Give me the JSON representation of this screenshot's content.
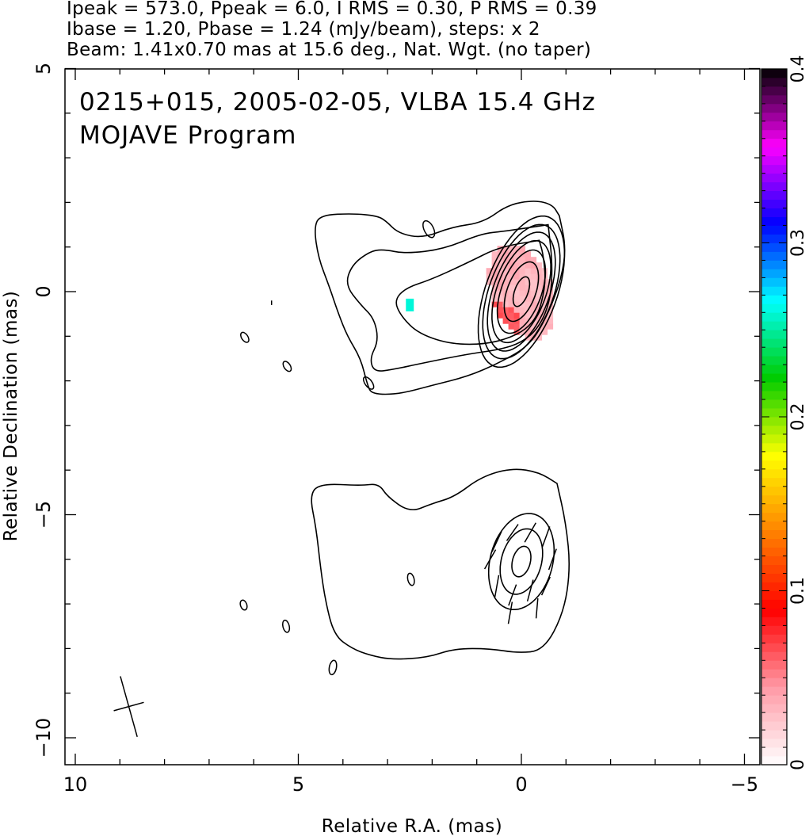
{
  "header": {
    "line1": "Ipeak = 573.0, Ppeak = 6.0, I RMS = 0.30, P RMS = 0.39",
    "line2": "Ibase = 1.20, Pbase = 1.24 (mJy/beam), steps: x 2",
    "line3": "Beam: 1.41x0.70 mas at 15.6 deg., Nat. Wgt. (no taper)"
  },
  "inset": {
    "line1": "0215+015, 2005-02-05, VLBA 15.4 GHz",
    "line2": "MOJAVE Program"
  },
  "chart_data": {
    "type": "contour",
    "xlabel": "Relative R.A. (mas)",
    "ylabel": "Relative Declination (mas)",
    "xlim": [
      10.2,
      -5.2
    ],
    "ylim": [
      -10.6,
      5
    ],
    "x_ticks": [
      10,
      5,
      0,
      -5
    ],
    "x_tick_labels": [
      "10",
      "5",
      "0",
      "−5"
    ],
    "y_ticks": [
      5,
      0,
      -5,
      -10
    ],
    "y_tick_labels": [
      "5",
      "0",
      "−5",
      "−10"
    ],
    "colorbar": {
      "range": [
        0,
        0.4
      ],
      "ticks": [
        0,
        0.1,
        0.2,
        0.3,
        0.4
      ],
      "tick_labels": [
        "0",
        "0.1",
        "0.2",
        "0.3",
        "0.4"
      ],
      "colormap": [
        "#ffffff",
        "#ff9aa6",
        "#ff0000",
        "#ff8000",
        "#ffff00",
        "#00cc00",
        "#00ffff",
        "#0000ff",
        "#ff00ff",
        "#000000"
      ]
    },
    "intensity_map": {
      "center": [
        0,
        0
      ],
      "contour_semi_axes_mas": [
        [
          0.15,
          0.35
        ],
        [
          0.32,
          0.7
        ],
        [
          0.45,
          0.98
        ],
        [
          0.55,
          1.2
        ],
        [
          0.63,
          1.4
        ],
        [
          0.72,
          1.58
        ],
        [
          0.8,
          1.78
        ]
      ],
      "position_angle_deg": 20,
      "outer_contours_mas": [
        [
          [
            -0.85,
            1.7
          ],
          [
            -0.7,
            1.95
          ],
          [
            -0.3,
            2.05
          ],
          [
            0.3,
            1.95
          ],
          [
            0.85,
            1.55
          ],
          [
            1.55,
            1.45
          ],
          [
            2.2,
            1.2
          ],
          [
            2.75,
            1.3
          ],
          [
            3.05,
            1.6
          ],
          [
            3.25,
            1.7
          ],
          [
            3.75,
            1.75
          ],
          [
            4.5,
            1.72
          ],
          [
            4.65,
            1.45
          ],
          [
            4.55,
            0.75
          ],
          [
            4.3,
            0.1
          ],
          [
            4.1,
            -0.5
          ],
          [
            3.9,
            -1.0
          ],
          [
            3.6,
            -1.5
          ],
          [
            3.45,
            -2.1
          ],
          [
            3.35,
            -2.3
          ],
          [
            2.75,
            -2.3
          ],
          [
            2.0,
            -2.1
          ],
          [
            1.2,
            -1.9
          ],
          [
            0.5,
            -1.6
          ],
          [
            -0.2,
            -1.2
          ],
          [
            -0.6,
            -0.5
          ],
          [
            -0.9,
            0.3
          ],
          [
            -1.0,
            1.0
          ],
          [
            -0.85,
            1.7
          ]
        ],
        [
          [
            -0.6,
            1.5
          ],
          [
            0.4,
            1.35
          ],
          [
            0.9,
            1.3
          ],
          [
            1.75,
            0.95
          ],
          [
            2.6,
            0.85
          ],
          [
            3.1,
            0.95
          ],
          [
            3.4,
            0.9
          ],
          [
            3.8,
            0.6
          ],
          [
            3.95,
            0.15
          ],
          [
            3.6,
            -0.3
          ],
          [
            3.3,
            -0.6
          ],
          [
            3.2,
            -1.1
          ],
          [
            3.4,
            -1.5
          ],
          [
            3.3,
            -1.8
          ],
          [
            2.9,
            -1.75
          ],
          [
            2.2,
            -1.6
          ],
          [
            1.2,
            -1.4
          ],
          [
            0.5,
            -1.3
          ],
          [
            0,
            -1.15
          ],
          [
            -0.4,
            -0.8
          ],
          [
            -0.65,
            -0.2
          ],
          [
            -0.7,
            0.6
          ],
          [
            -0.6,
            1.5
          ]
        ],
        [
          [
            -0.4,
            1.15
          ],
          [
            0.5,
            1.0
          ],
          [
            1.2,
            0.65
          ],
          [
            2.0,
            0.28
          ],
          [
            2.6,
            0.08
          ],
          [
            2.85,
            -0.2
          ],
          [
            2.7,
            -0.55
          ],
          [
            2.3,
            -0.95
          ],
          [
            1.5,
            -1.2
          ],
          [
            0.5,
            -1.15
          ],
          [
            -0.3,
            -0.75
          ],
          [
            -0.55,
            0.1
          ],
          [
            -0.5,
            0.8
          ],
          [
            -0.4,
            1.15
          ]
        ]
      ],
      "noise_islands_mas": [
        [
          [
            2.15,
            1.55
          ],
          [
            2.0,
            1.25
          ]
        ],
        [
          [
            3.5,
            -1.95
          ],
          [
            3.35,
            -2.15
          ]
        ],
        [
          [
            5.3,
            -1.6
          ],
          [
            5.2,
            -1.75
          ]
        ],
        [
          [
            6.25,
            -0.95
          ],
          [
            6.15,
            -1.1
          ]
        ],
        [
          [
            5.6,
            -0.2
          ],
          [
            5.6,
            -0.3
          ]
        ]
      ]
    },
    "polarization_map": {
      "color_pixels": [
        {
          "x": 0.0,
          "y": 0.0,
          "value": 0.03
        },
        {
          "x": 0.35,
          "y": 0.5,
          "value": 0.035
        },
        {
          "x": -0.3,
          "y": -0.6,
          "value": 0.032
        },
        {
          "x": 0.4,
          "y": -0.75,
          "value": 0.065
        },
        {
          "x": 2.5,
          "y": -0.3,
          "value": 0.26
        }
      ]
    },
    "lower_panel": {
      "center": [
        0,
        -6.05
      ],
      "contour_semi_axes_mas": [
        [
          0.2,
          0.35
        ],
        [
          0.45,
          0.75
        ],
        [
          0.7,
          1.1
        ]
      ],
      "outer_contour_mas": [
        [
          -0.8,
          -4.3
        ],
        [
          -0.4,
          -4.05
        ],
        [
          0.2,
          -3.95
        ],
        [
          0.9,
          -4.15
        ],
        [
          1.5,
          -4.6
        ],
        [
          2.0,
          -4.75
        ],
        [
          2.5,
          -4.95
        ],
        [
          3.0,
          -4.6
        ],
        [
          3.2,
          -4.3
        ],
        [
          3.6,
          -4.35
        ],
        [
          4.5,
          -4.3
        ],
        [
          4.75,
          -4.55
        ],
        [
          4.6,
          -5.3
        ],
        [
          4.5,
          -6.2
        ],
        [
          4.4,
          -6.9
        ],
        [
          4.2,
          -7.7
        ],
        [
          3.8,
          -8.0
        ],
        [
          3.4,
          -8.15
        ],
        [
          2.9,
          -8.25
        ],
        [
          2.1,
          -8.2
        ],
        [
          1.5,
          -8.0
        ],
        [
          0.7,
          -8.0
        ],
        [
          0.1,
          -8.1
        ],
        [
          -0.5,
          -8.05
        ],
        [
          -0.95,
          -7.2
        ],
        [
          -1.1,
          -6.2
        ],
        [
          -1.0,
          -5.2
        ],
        [
          -0.8,
          -4.3
        ]
      ],
      "vectors": [
        {
          "x": -0.55,
          "y": -5.5,
          "length": 0.5,
          "angle_deg": 110
        },
        {
          "x": -0.2,
          "y": -5.4,
          "length": 0.5,
          "angle_deg": 120
        },
        {
          "x": 0.2,
          "y": -5.4,
          "length": 0.45,
          "angle_deg": 125
        },
        {
          "x": 0.55,
          "y": -5.6,
          "length": 0.5,
          "angle_deg": 115
        },
        {
          "x": -0.7,
          "y": -6.0,
          "length": 0.5,
          "angle_deg": 110
        },
        {
          "x": 0.7,
          "y": -6.0,
          "length": 0.5,
          "angle_deg": 120
        },
        {
          "x": -0.55,
          "y": -6.6,
          "length": 0.45,
          "angle_deg": 115
        },
        {
          "x": -0.2,
          "y": -6.7,
          "length": 0.5,
          "angle_deg": 105
        },
        {
          "x": 0.2,
          "y": -6.8,
          "length": 0.5,
          "angle_deg": 110
        },
        {
          "x": 0.55,
          "y": -6.6,
          "length": 0.5,
          "angle_deg": 100
        },
        {
          "x": -0.35,
          "y": -7.1,
          "length": 0.45,
          "angle_deg": 95
        },
        {
          "x": 0.25,
          "y": -7.2,
          "length": 0.5,
          "angle_deg": 100
        }
      ],
      "noise_islands_mas": [
        [
          [
            2.5,
            -6.35
          ],
          [
            2.45,
            -6.55
          ]
        ],
        [
          [
            5.3,
            -7.4
          ],
          [
            5.25,
            -7.6
          ]
        ],
        [
          [
            6.25,
            -6.95
          ],
          [
            6.2,
            -7.1
          ]
        ],
        [
          [
            4.2,
            -8.3
          ],
          [
            4.25,
            -8.55
          ]
        ]
      ]
    },
    "beam": {
      "center": [
        8.8,
        -9.3
      ],
      "major_mas": 1.41,
      "minor_mas": 0.7,
      "pa_deg": 15.6
    }
  }
}
